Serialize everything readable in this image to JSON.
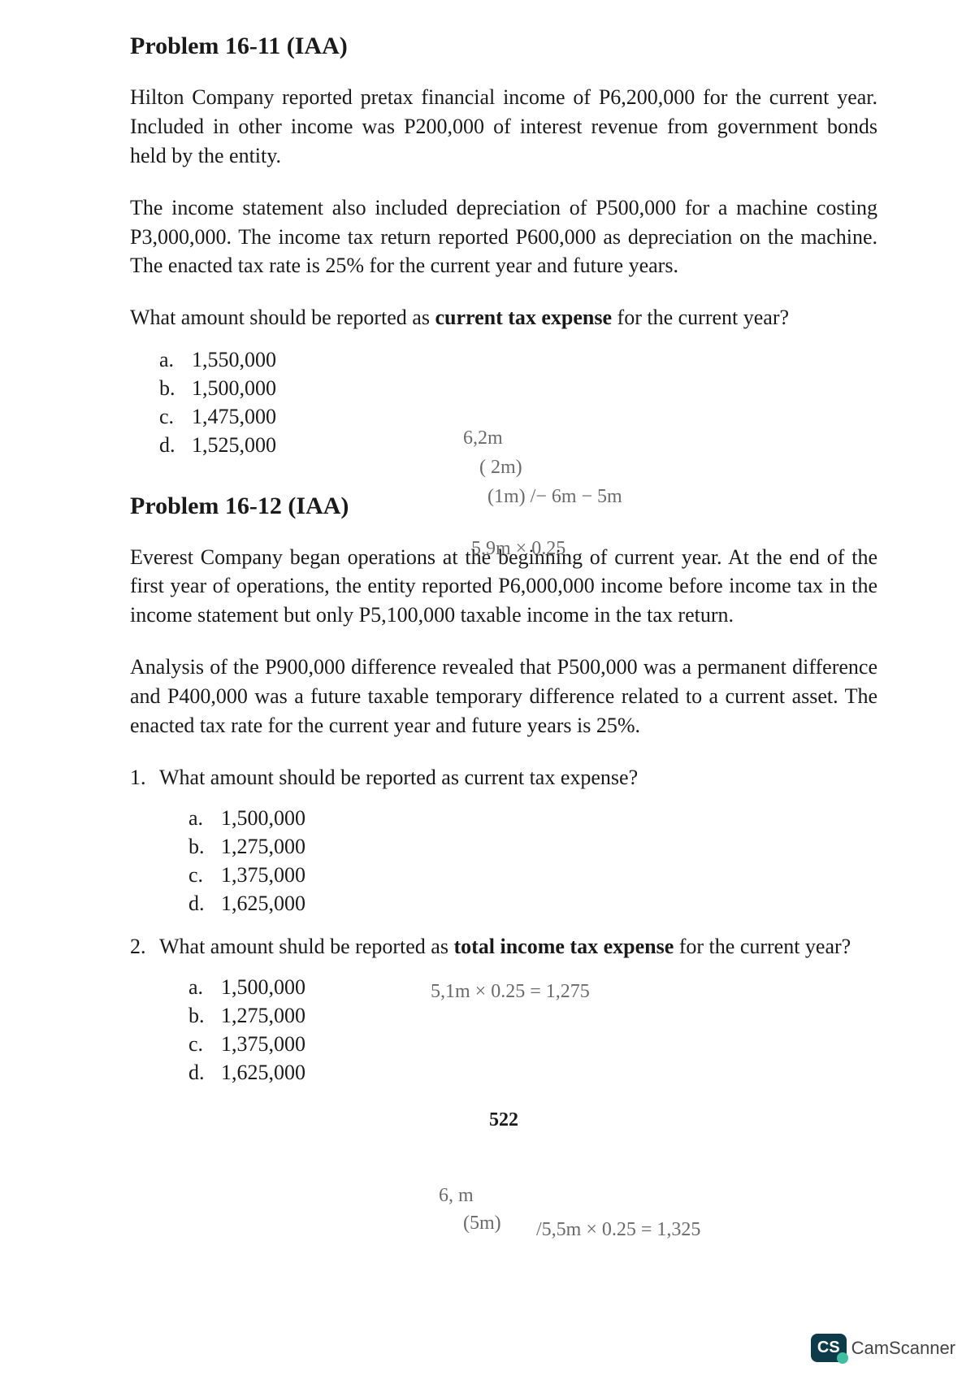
{
  "page_number": "522",
  "problem1": {
    "title": "Problem 16-11  (IAA)",
    "para1": "Hilton Company reported pretax financial income of P6,200,000 for the current year. Included in other income was P200,000 of interest revenue from government bonds held by the entity.",
    "para2": "The income statement also included depreciation of P500,000 for a machine costing P3,000,000. The income tax return reported P600,000 as depreciation on the machine. The enacted tax rate is 25% for the current year and future years.",
    "question_lead": "What amount should be reported as ",
    "question_bold": "current tax expense",
    "question_tail": " for the current year?",
    "options": [
      {
        "letter": "a.",
        "value": "1,550,000"
      },
      {
        "letter": "b.",
        "value": "1,500,000"
      },
      {
        "letter": "c.",
        "value": "1,475,000"
      },
      {
        "letter": "d.",
        "value": "1,525,000"
      }
    ]
  },
  "problem2": {
    "title": "Problem 16-12  (IAA)",
    "para1": "Everest Company began operations at the beginning of current year. At the end of the first year of operations, the entity reported P6,000,000 income before income tax in the income statement but only P5,100,000 taxable income in the tax return.",
    "para2": "Analysis of the P900,000 difference revealed that P500,000 was a permanent difference and P400,000 was a future taxable temporary difference related to a current asset. The enacted tax rate for the current year and future years is 25%.",
    "q1": {
      "num": "1.",
      "text": "What amount should be reported as current tax expense?",
      "options": [
        {
          "letter": "a.",
          "value": "1,500,000"
        },
        {
          "letter": "b.",
          "value": "1,275,000"
        },
        {
          "letter": "c.",
          "value": "1,375,000"
        },
        {
          "letter": "d.",
          "value": "1,625,000"
        }
      ]
    },
    "q2": {
      "num": "2.",
      "lead": "What amount shuld be reported as ",
      "bold": "total income tax expense",
      "tail": " for the current year?",
      "options": [
        {
          "letter": "a.",
          "value": "1,500,000"
        },
        {
          "letter": "b.",
          "value": "1,275,000"
        },
        {
          "letter": "c.",
          "value": "1,375,000"
        },
        {
          "letter": "d.",
          "value": "1,625,000"
        }
      ]
    }
  },
  "handwriting": {
    "h1": "6,2m",
    "h2": "( 2m)",
    "h3": "(1m) /− 6m − 5m",
    "h4": "5,9m × 0.25",
    "h5": "5,1m × 0.25 = 1,275",
    "h6": "6, m",
    "h7": "(5m)",
    "h8": "/5,5m × 0.25 = 1,325"
  },
  "watermark": {
    "badge": "CS",
    "text": "CamScanner"
  }
}
